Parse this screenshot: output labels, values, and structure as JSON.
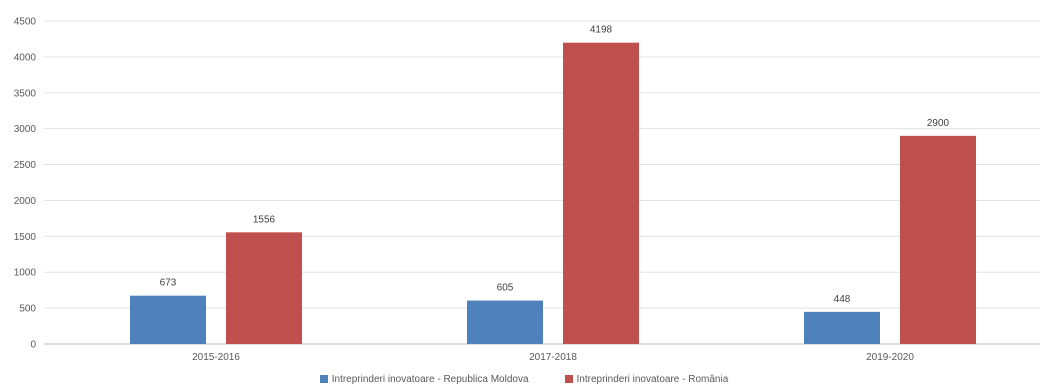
{
  "chart_data": {
    "type": "bar",
    "title": "",
    "xlabel": "",
    "ylabel": "",
    "categories": [
      "2015-2016",
      "2017-2018",
      "2019-2020"
    ],
    "series": [
      {
        "name": "Intreprinderi inovatoare - Republica Moldova",
        "values": [
          673,
          605,
          448
        ],
        "color": "#4f81bd"
      },
      {
        "name": "Intreprinderi inovatoare - România",
        "values": [
          1556,
          4198,
          2900
        ],
        "color": "#c0504d"
      }
    ],
    "ylim": [
      0,
      4500
    ],
    "yticks": [
      0,
      500,
      1000,
      1500,
      2000,
      2500,
      3000,
      3500,
      4000,
      4500
    ],
    "grid": true,
    "legend": "bottom-center"
  }
}
